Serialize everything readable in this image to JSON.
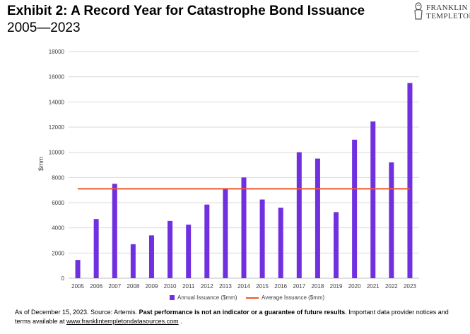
{
  "header": {
    "title": "Exhibit 2: A Record Year for Catastrophe Bond Issuance",
    "subtitle": "2005—2023"
  },
  "logo": {
    "line1": "FRANKLIN",
    "line2": "TEMPLETON"
  },
  "footnote": {
    "part1": "As of December 15, 2023. Source: Artemis. ",
    "bold": "Past performance is not an indicator or a guarantee of future results",
    "part2": ". Important data provider notices and terms available at ",
    "link": "www.franklintempletondatasources.com",
    "part3": " ."
  },
  "chart_data": {
    "type": "bar",
    "categories": [
      "2005",
      "2006",
      "2007",
      "2008",
      "2009",
      "2010",
      "2011",
      "2012",
      "2013",
      "2014",
      "2015",
      "2016",
      "2017",
      "2018",
      "2019",
      "2020",
      "2021",
      "2022",
      "2023"
    ],
    "series": [
      {
        "name": "Annual Issuance ($mm)",
        "type": "bar",
        "color": "#7030e0",
        "values": [
          1450,
          4700,
          7500,
          2700,
          3400,
          4550,
          4250,
          5850,
          7100,
          8000,
          6250,
          5600,
          10000,
          9500,
          5250,
          11000,
          12450,
          9200,
          15500
        ]
      },
      {
        "name": "Average Issuance ($mm)",
        "type": "line",
        "color": "#f0562a",
        "values": [
          7100,
          7100,
          7100,
          7100,
          7100,
          7100,
          7100,
          7100,
          7100,
          7100,
          7100,
          7100,
          7100,
          7100,
          7100,
          7100,
          7100,
          7100,
          7100
        ]
      }
    ],
    "ylabel": "$mm",
    "xlabel": "",
    "ylim": [
      0,
      18000
    ],
    "yticks": [
      0,
      2000,
      4000,
      6000,
      8000,
      10000,
      12000,
      14000,
      16000,
      18000
    ],
    "grid": true,
    "legend": "bottom"
  }
}
